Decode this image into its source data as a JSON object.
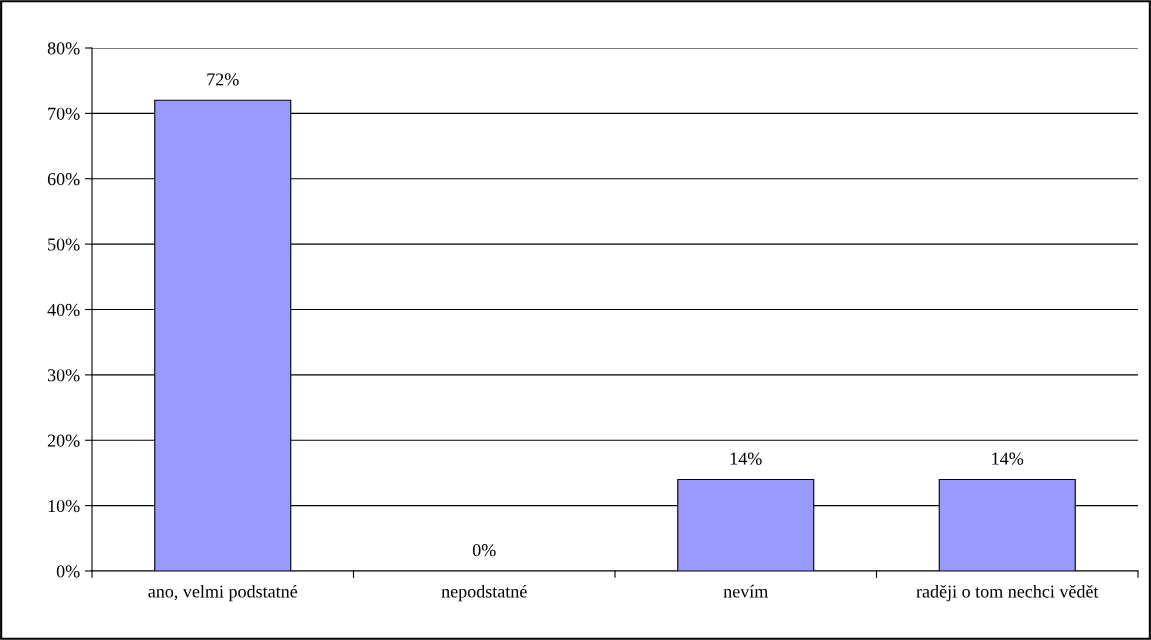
{
  "chart_data": {
    "type": "bar",
    "categories": [
      "ano, velmi podstatné",
      "nepodstatné",
      "nevím",
      "raději o tom nechci vědět"
    ],
    "values": [
      72,
      0,
      14,
      14
    ],
    "color": "#9999ff",
    "value_labels": [
      "72%",
      "0%",
      "14%",
      "14%"
    ],
    "ylim": [
      0,
      80
    ],
    "yticks": [
      {
        "value": 0,
        "label": "0%"
      },
      {
        "value": 10,
        "label": "10%"
      },
      {
        "value": 20,
        "label": "20%"
      },
      {
        "value": 30,
        "label": "30%"
      },
      {
        "value": 40,
        "label": "40%"
      },
      {
        "value": 50,
        "label": "50%"
      },
      {
        "value": 60,
        "label": "60%"
      },
      {
        "value": 70,
        "label": "70%"
      },
      {
        "value": 80,
        "label": "80%"
      }
    ],
    "grid": "y"
  }
}
